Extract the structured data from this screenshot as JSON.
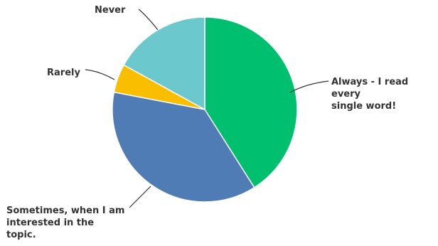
{
  "chart_data": {
    "type": "pie",
    "title": "",
    "legend": "none",
    "slices": [
      {
        "label": "Always - I read every\nsingle word!",
        "value": 41,
        "color": "#00BF6F"
      },
      {
        "label": "Sometimes, when I am\ninterested in the\ntopic.",
        "value": 37,
        "color": "#507CB6"
      },
      {
        "label": "Rarely",
        "value": 5,
        "color": "#F9BE00"
      },
      {
        "label": "Never",
        "value": 17,
        "color": "#6BC8CD"
      }
    ]
  }
}
